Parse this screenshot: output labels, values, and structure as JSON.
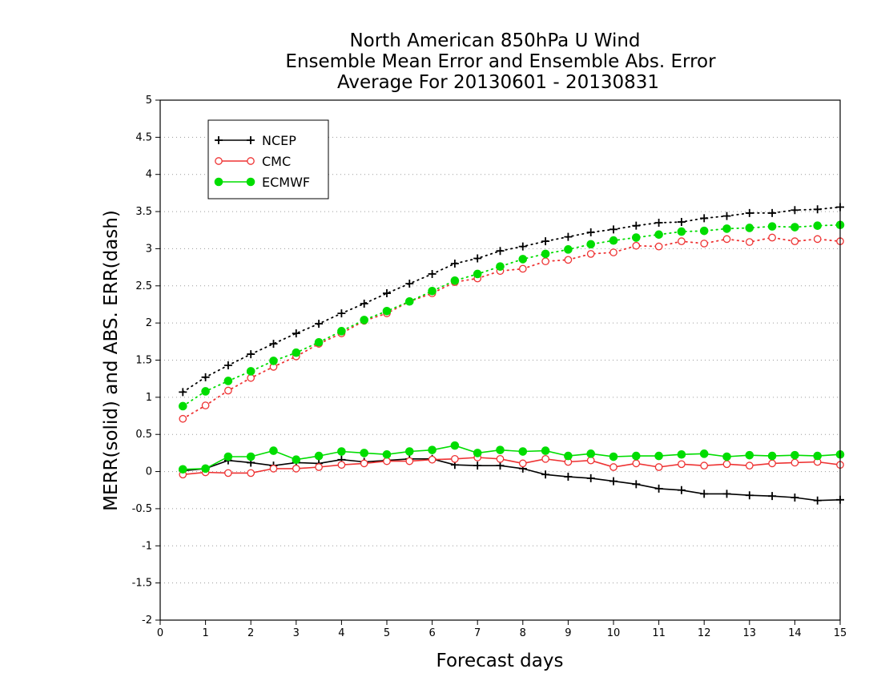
{
  "chart_data": {
    "type": "line",
    "title": [
      "North American 850hPa U Wind",
      "Ensemble Mean Error and Ensemble Abs. Error",
      "Average For 20130601 - 20130831"
    ],
    "xlabel": "Forecast days",
    "ylabel": "MERR(solid) and ABS. ERR(dash)",
    "xlim": [
      0,
      15
    ],
    "ylim": [
      -2,
      5
    ],
    "xticks": [
      "0",
      "1",
      "2",
      "3",
      "4",
      "5",
      "6",
      "7",
      "8",
      "9",
      "10",
      "11",
      "12",
      "13",
      "14",
      "15"
    ],
    "yticks": [
      "5",
      "4.5",
      "4",
      "3.5",
      "3",
      "2.5",
      "2",
      "1.5",
      "1",
      "0.5",
      "0",
      "-0.5",
      "-1",
      "-1.5",
      "-2"
    ],
    "grid": true,
    "legend_position": "top-left",
    "x": [
      0.5,
      1,
      1.5,
      2,
      2.5,
      3,
      3.5,
      4,
      4.5,
      5,
      5.5,
      6,
      6.5,
      7,
      7.5,
      8,
      8.5,
      9,
      9.5,
      10,
      10.5,
      11,
      11.5,
      12,
      12.5,
      13,
      13.5,
      14,
      14.5,
      15
    ],
    "series": [
      {
        "name": "NCEP",
        "color": "#000000",
        "marker": "plus",
        "merr": [
          0.01,
          0.04,
          0.15,
          0.12,
          0.08,
          0.12,
          0.11,
          0.16,
          0.13,
          0.15,
          0.17,
          0.17,
          0.09,
          0.08,
          0.08,
          0.04,
          -0.04,
          -0.07,
          -0.09,
          -0.13,
          -0.17,
          -0.23,
          -0.25,
          -0.3,
          -0.3,
          -0.32,
          -0.33,
          -0.35,
          -0.39,
          -0.38
        ],
        "abs_err": [
          1.07,
          1.27,
          1.43,
          1.58,
          1.72,
          1.86,
          1.99,
          2.13,
          2.26,
          2.4,
          2.53,
          2.66,
          2.8,
          2.87,
          2.97,
          3.03,
          3.1,
          3.16,
          3.22,
          3.26,
          3.31,
          3.35,
          3.36,
          3.41,
          3.44,
          3.48,
          3.48,
          3.52,
          3.53,
          3.56
        ]
      },
      {
        "name": "CMC",
        "color": "#ee3333",
        "marker": "open-circle",
        "merr": [
          -0.04,
          -0.01,
          -0.02,
          -0.02,
          0.04,
          0.04,
          0.06,
          0.09,
          0.11,
          0.14,
          0.14,
          0.16,
          0.17,
          0.19,
          0.17,
          0.11,
          0.17,
          0.13,
          0.15,
          0.06,
          0.11,
          0.06,
          0.1,
          0.08,
          0.1,
          0.08,
          0.11,
          0.12,
          0.13,
          0.09
        ],
        "abs_err": [
          0.71,
          0.89,
          1.09,
          1.26,
          1.41,
          1.55,
          1.72,
          1.86,
          2.03,
          2.13,
          2.29,
          2.4,
          2.55,
          2.6,
          2.7,
          2.73,
          2.83,
          2.85,
          2.93,
          2.95,
          3.04,
          3.03,
          3.1,
          3.07,
          3.13,
          3.09,
          3.15,
          3.1,
          3.13,
          3.1
        ]
      },
      {
        "name": "ECMWF",
        "color": "#00dd00",
        "marker": "filled-circle",
        "merr": [
          0.03,
          0.04,
          0.2,
          0.2,
          0.28,
          0.16,
          0.21,
          0.27,
          0.25,
          0.23,
          0.27,
          0.29,
          0.35,
          0.25,
          0.29,
          0.27,
          0.28,
          0.21,
          0.24,
          0.2,
          0.21,
          0.21,
          0.23,
          0.24,
          0.2,
          0.22,
          0.21,
          0.22,
          0.21,
          0.23
        ],
        "abs_err": [
          0.88,
          1.08,
          1.22,
          1.35,
          1.49,
          1.6,
          1.74,
          1.89,
          2.04,
          2.16,
          2.29,
          2.43,
          2.57,
          2.66,
          2.76,
          2.86,
          2.93,
          2.99,
          3.06,
          3.11,
          3.15,
          3.19,
          3.23,
          3.24,
          3.27,
          3.28,
          3.3,
          3.29,
          3.31,
          3.32
        ]
      }
    ]
  }
}
